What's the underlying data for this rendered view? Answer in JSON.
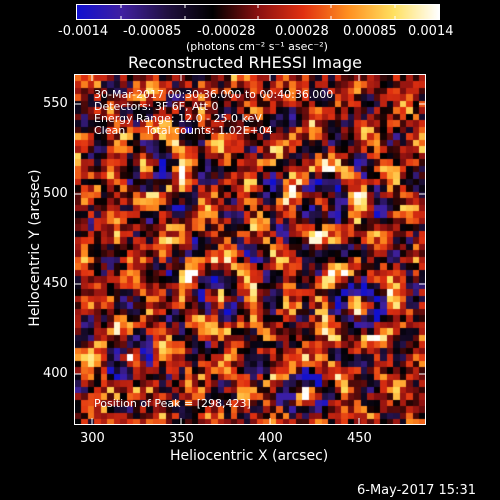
{
  "colorbar": {
    "tick_labels": [
      "-0.0014",
      "-0.00085",
      "-0.00028",
      "0.00028",
      "0.00085",
      "0.0014"
    ],
    "units": "(photons cm⁻² s⁻¹ asec⁻²)",
    "colors": [
      "#1010d0",
      "#4020a0",
      "#201040",
      "#000000",
      "#8a1010",
      "#e03010",
      "#ff9020",
      "#ffe060",
      "#ffffff"
    ]
  },
  "plot": {
    "title": "Reconstructed RHESSI Image",
    "date_range": "30-Mar-2017 00:30:36.000 to 00:40:36.000",
    "detectors": "Detectors: 3F 6F, Att 0",
    "energy_range": "Energy Range: 12.0 - 25.0 keV",
    "clean": "Clean",
    "total_counts": "Total counts: 1.02E+04",
    "peak_position": "Position of Peak = [298,423]"
  },
  "axes": {
    "xlabel": "Heliocentric X (arcsec)",
    "ylabel": "Heliocentric Y (arcsec)",
    "x_ticks": [
      "300",
      "350",
      "400",
      "450"
    ],
    "y_ticks": [
      "400",
      "450",
      "500",
      "550"
    ]
  },
  "footer": {
    "timestamp": "6-May-2017 15:31"
  }
}
